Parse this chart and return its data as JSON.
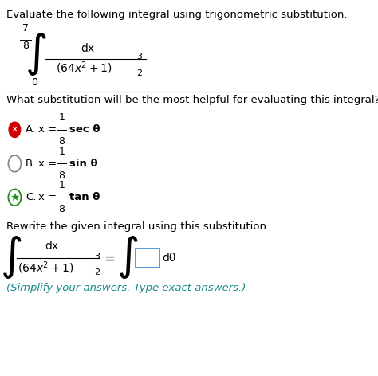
{
  "title_text": "Evaluate the following integral using trigonometric substitution.",
  "question_text": "What substitution will be the most helpful for evaluating this integral?",
  "rewrite_text": "Rewrite the given integral using this substitution.",
  "simplify_text": "(Simplify your answers. Type exact answers.)",
  "bg_color": "#ffffff",
  "text_color": "#000000",
  "teal_color": "#1a8a8a",
  "divider_color": "#cccccc",
  "red_color": "#cc0000",
  "green_color": "#228B22",
  "gray_color": "#888888",
  "blue_box_color": "#4a90d9"
}
